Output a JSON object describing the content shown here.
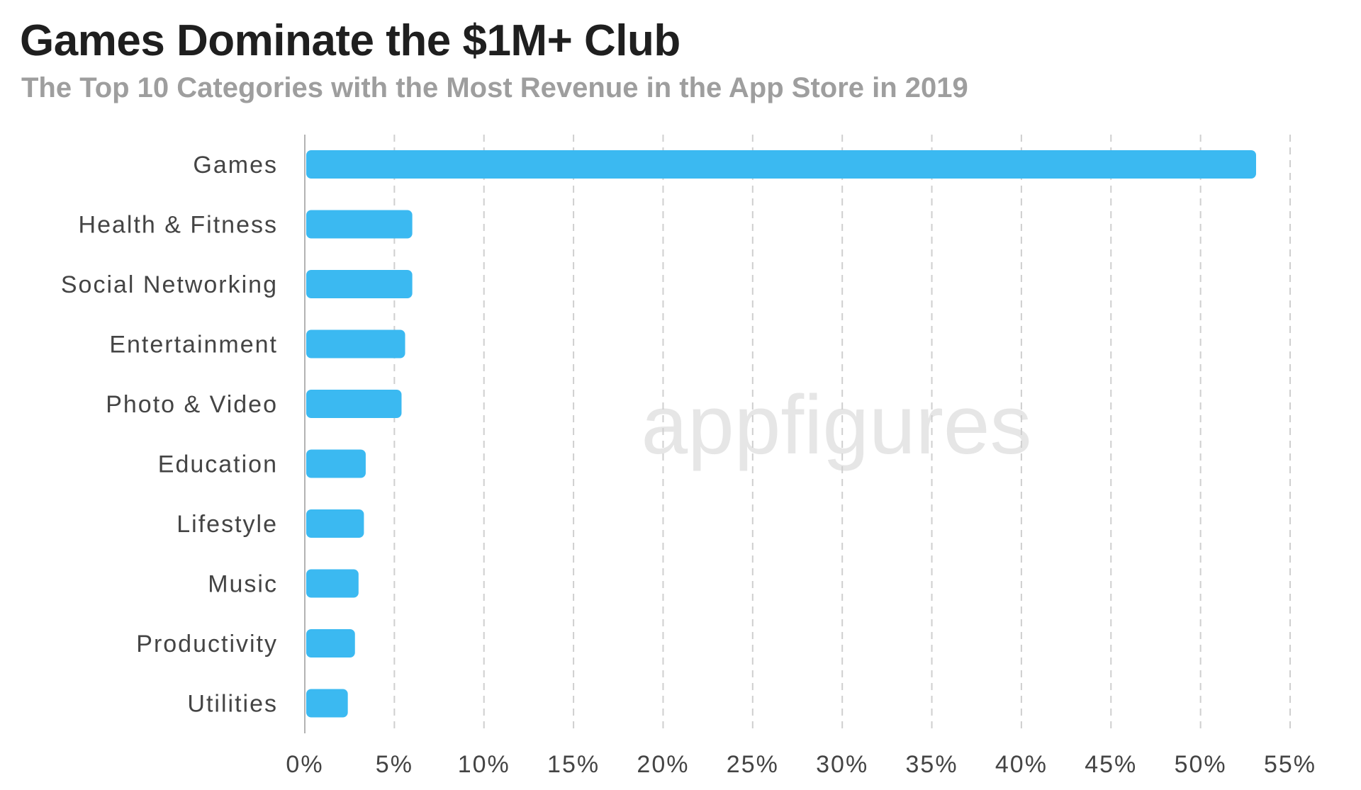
{
  "chart_data": {
    "type": "bar",
    "orientation": "horizontal",
    "title": "Games Dominate the $1M+ Club",
    "subtitle": "The Top 10 Categories with the Most Revenue in the App Store in 2019",
    "categories": [
      "Games",
      "Health & Fitness",
      "Social Networking",
      "Entertainment",
      "Photo & Video",
      "Education",
      "Lifestyle",
      "Music",
      "Productivity",
      "Utilities"
    ],
    "values": [
      53.1,
      6.0,
      6.0,
      5.6,
      5.4,
      3.4,
      3.3,
      3.0,
      2.8,
      2.4
    ],
    "value_unit": "%",
    "xlim": [
      0,
      55
    ],
    "xticks": [
      "0%",
      "5%",
      "10%",
      "15%",
      "20%",
      "25%",
      "30%",
      "35%",
      "40%",
      "45%",
      "50%",
      "55%"
    ],
    "grid": "vertical dashed",
    "legend": "none",
    "bar_color": "#3bb9f1",
    "watermark": "appfigures"
  }
}
